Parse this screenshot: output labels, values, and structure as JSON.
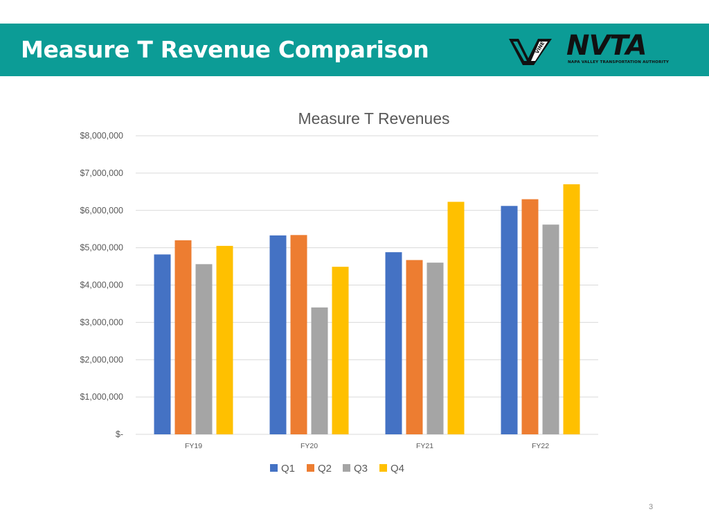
{
  "slide": {
    "title": "Measure T Revenue Comparison",
    "page_number": "3"
  },
  "logos": {
    "vine_text": "VINE",
    "nvta_text": "NVTA",
    "nvta_subtitle": "NAPA VALLEY TRANSPORTATION AUTHORITY"
  },
  "colors": {
    "header_bg": "#0c9c96",
    "Q1": "#4472c4",
    "Q2": "#ed7d31",
    "Q3": "#a5a5a5",
    "Q4": "#ffc000"
  },
  "chart_data": {
    "type": "bar",
    "title": "Measure T Revenues",
    "xlabel": "",
    "ylabel": "",
    "categories": [
      "FY19",
      "FY20",
      "FY21",
      "FY22"
    ],
    "series": [
      {
        "name": "Q1",
        "values": [
          4820000,
          5330000,
          4880000,
          6120000
        ]
      },
      {
        "name": "Q2",
        "values": [
          5200000,
          5340000,
          4670000,
          6300000
        ]
      },
      {
        "name": "Q3",
        "values": [
          4560000,
          3400000,
          4600000,
          5620000
        ]
      },
      {
        "name": "Q4",
        "values": [
          5050000,
          4490000,
          6230000,
          6700000
        ]
      }
    ],
    "ylim": [
      0,
      8000000
    ],
    "yticks": [
      0,
      1000000,
      2000000,
      3000000,
      4000000,
      5000000,
      6000000,
      7000000,
      8000000
    ],
    "ytick_labels": [
      "$-",
      "$1,000,000",
      "$2,000,000",
      "$3,000,000",
      "$4,000,000",
      "$5,000,000",
      "$6,000,000",
      "$7,000,000",
      "$8,000,000"
    ],
    "grid": true,
    "legend": "bottom"
  }
}
